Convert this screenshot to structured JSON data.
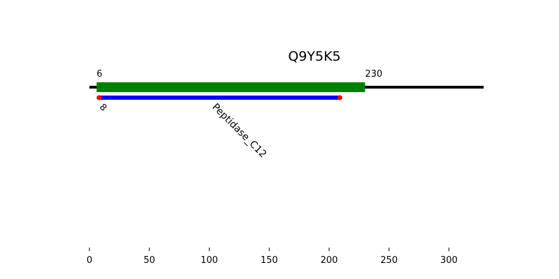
{
  "chart_data": {
    "type": "domain-map",
    "title": "Q9Y5K5",
    "xlim": [
      0,
      330
    ],
    "xticks": [
      0,
      50,
      100,
      150,
      200,
      250,
      300
    ],
    "backbone": {
      "start": 0,
      "end": 329,
      "color": "#000000"
    },
    "region": {
      "start": 6,
      "end": 230,
      "start_label": "6",
      "end_label": "230",
      "color": "#008000"
    },
    "domains": [
      {
        "name": "Peptidase_C12",
        "start": 8,
        "end": 209,
        "start_label": "8",
        "color": "#0000ff",
        "endpoint_color": "#ff0000"
      }
    ]
  }
}
